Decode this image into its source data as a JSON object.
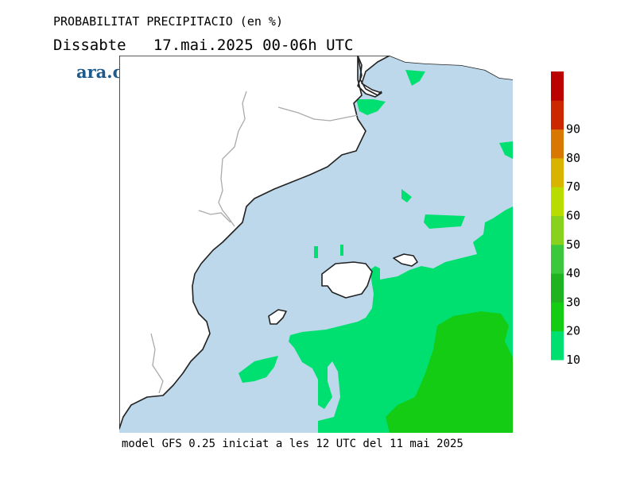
{
  "title": "PROBABILITAT PRECIPITACIO (en %)",
  "subtitle": "Dissabte   17.mai.2025 00-06h UTC",
  "logo_text": "ara.cat",
  "footer": "model GFS 0.25 iniciat a les 12 UTC del 11 mai 2025",
  "colors": {
    "sea": "#bcd8ea",
    "land": "#ffffff",
    "coast": "#222222",
    "border": "#aaaaaa",
    "brand": "#1f5a8c",
    "p10": "#00e070",
    "p20": "#14cc14"
  },
  "legend": {
    "labels": [
      "10",
      "20",
      "30",
      "40",
      "50",
      "60",
      "70",
      "80",
      "90"
    ],
    "colors": [
      "#00e070",
      "#14cc14",
      "#1fb41f",
      "#3cc83c",
      "#88d21e",
      "#b8dc00",
      "#d8b400",
      "#d87800",
      "#cc2800",
      "#bb0000"
    ]
  }
}
